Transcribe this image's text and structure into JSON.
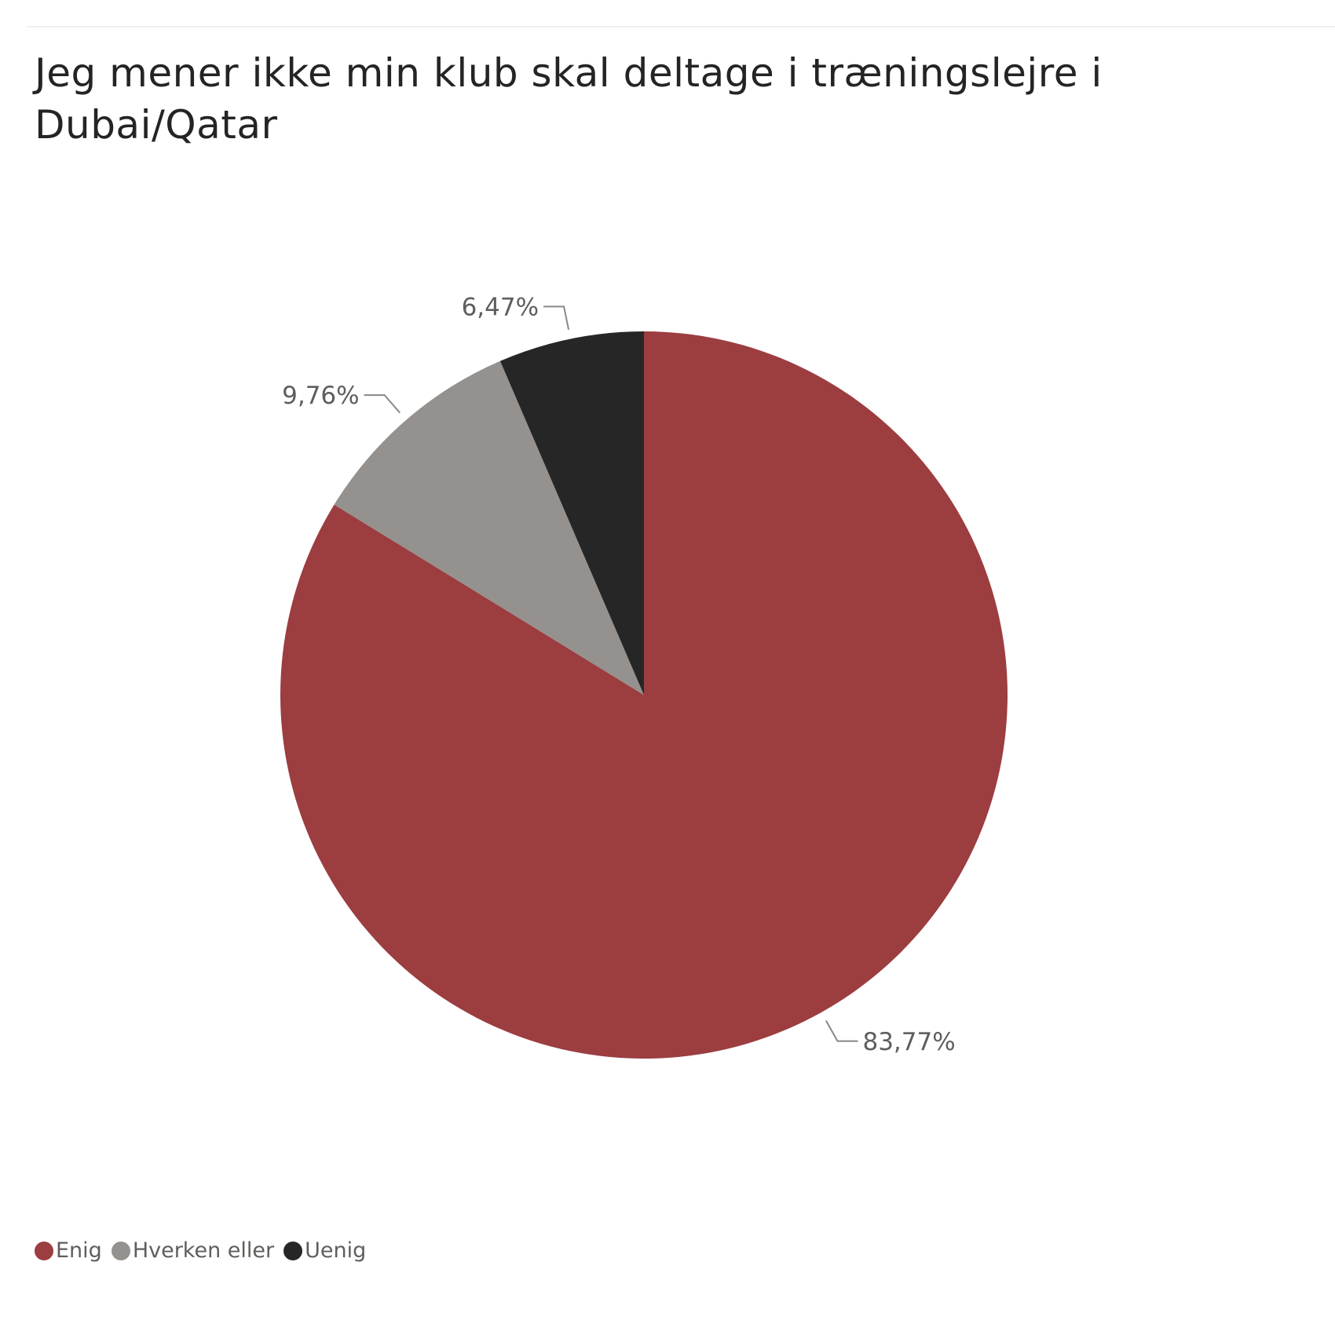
{
  "chart_data": {
    "type": "pie",
    "title": "Jeg mener ikke min klub skal deltage i træningslejre i Dubai/Qatar",
    "categories": [
      "Enig",
      "Hverken eller",
      "Uenig"
    ],
    "values": [
      83.77,
      9.76,
      6.47
    ],
    "value_labels": [
      "83,77%",
      "9,76%",
      "6,47%"
    ],
    "colors": [
      "#9c3d40",
      "#95918e",
      "#262626"
    ],
    "legend_position": "bottom-left",
    "start_angle": "top",
    "direction": "clockwise"
  }
}
